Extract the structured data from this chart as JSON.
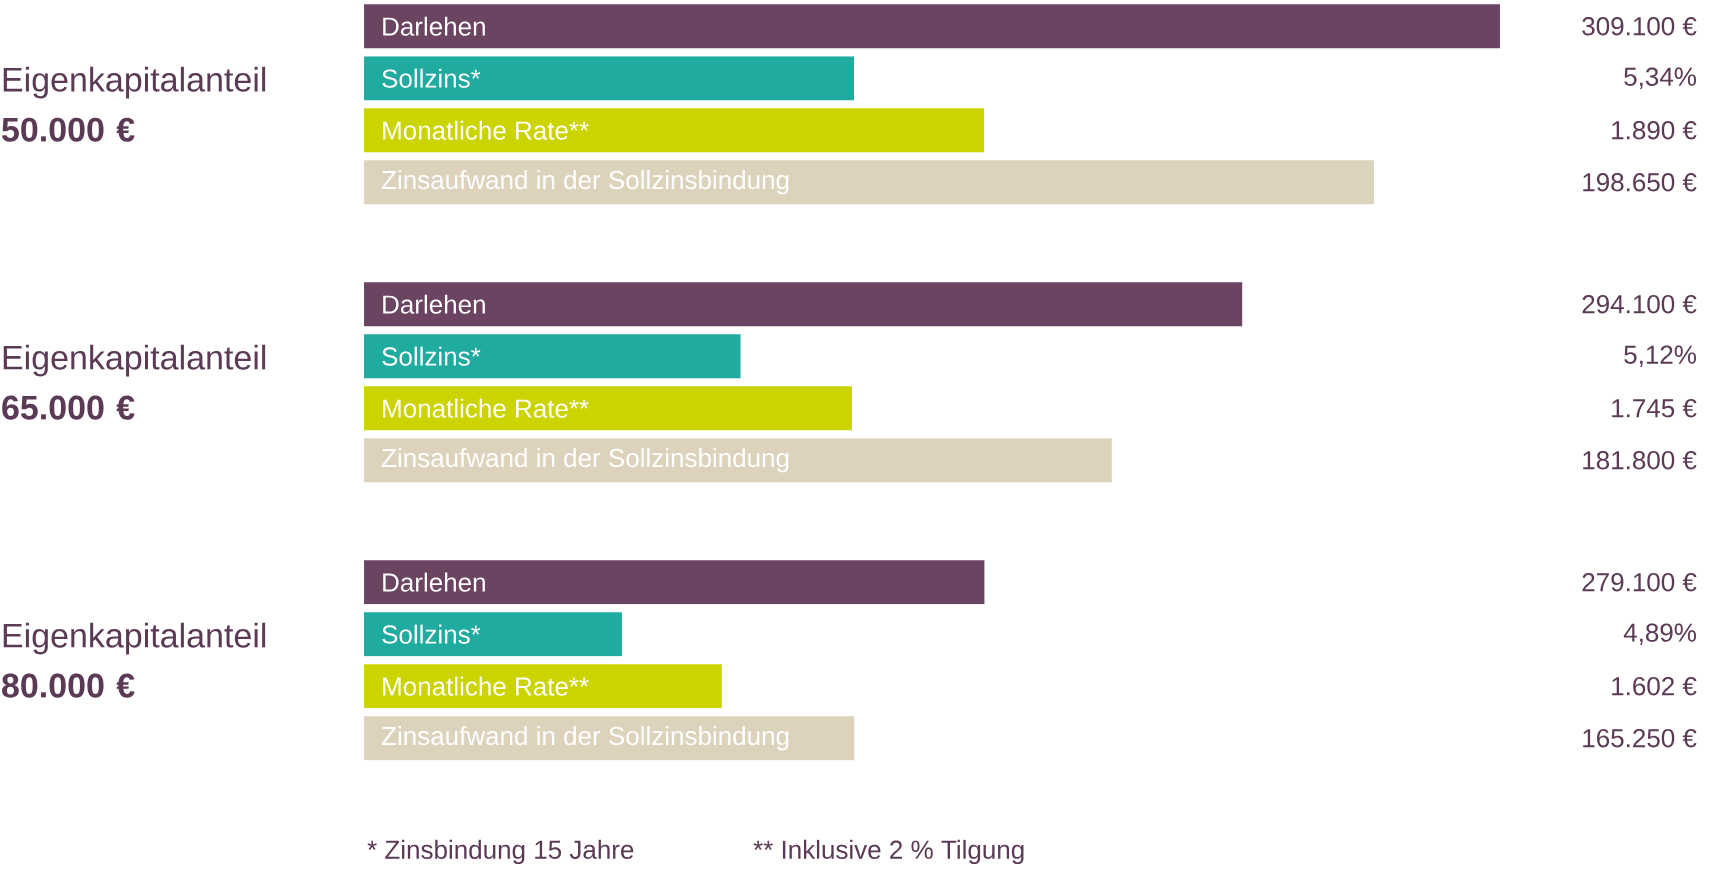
{
  "chart_data": [
    {
      "type": "bar",
      "orientation": "horizontal",
      "tick_labels": "y",
      "categories": [
        "Eigenkapitalanteil **50.000 €**",
        "Eigenkapitalanteil **65.000 €**",
        "Eigenkapitalanteil **80.000 €**"
      ],
      "xlim": [
        243000,
        309100
      ],
      "series": [
        {
          "name": "Darlehen",
          "color": "#6b4462",
          "values": [
            309100,
            294100,
            279100
          ],
          "value_labels": [
            "309.100 €",
            "294.100 €",
            "279.100 €"
          ]
        }
      ]
    },
    {
      "type": "bar",
      "orientation": "horizontal",
      "tick_labels": false,
      "categories": [
        null,
        null,
        null
      ],
      "xlim": [
        4.39,
        5.34
      ],
      "series": [
        {
          "name": "Sollzins*",
          "color": "#1fab9f",
          "values": [
            5.34,
            5.12,
            4.89
          ],
          "value_labels": [
            "5,34%",
            "5,12%",
            "4,89%"
          ]
        }
      ]
    },
    {
      "type": "bar",
      "orientation": "horizontal",
      "tick_labels": false,
      "categories": [
        null,
        null,
        null
      ],
      "xlim": [
        1209,
        1890
      ],
      "series": [
        {
          "name": "Monatliche Rate**",
          "color": "#ccd400",
          "values": [
            1890,
            1745,
            1602
          ],
          "value_labels": [
            "1.890 €",
            "1.745 €",
            "1.602 €"
          ]
        }
      ]
    },
    {
      "type": "bar",
      "orientation": "horizontal",
      "tick_labels": false,
      "categories": [
        null,
        null,
        null
      ],
      "xlim": [
        133750,
        198650
      ],
      "series": [
        {
          "name": "Zinsaufwand in der Sollzinsbindung",
          "color": "#ddd3bd",
          "values": [
            198650,
            181800,
            165250
          ],
          "value_labels": [
            "198.650 €",
            "181.800 €",
            "165.250 €"
          ]
        }
      ],
      "annotations": [
        "*  Zinsbindung 15 Jahre",
        "**  Inklusive 2 % Tilgung"
      ]
    }
  ]
}
